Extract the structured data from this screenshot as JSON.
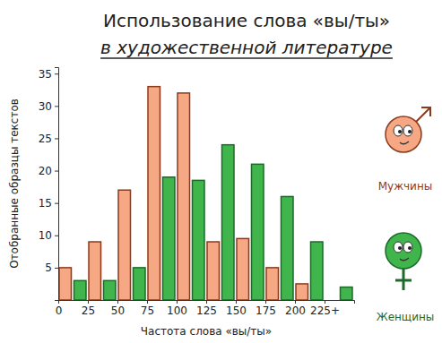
{
  "chart_data": {
    "type": "histogram",
    "title": "Использование слова «вы/ты»",
    "subtitle": "в художественной литературе",
    "x_label": "Частота слова «вы/ты»",
    "y_label": "Отобранные образцы текстов",
    "bins": [
      0,
      25,
      50,
      75,
      100,
      125,
      150,
      175,
      200,
      225,
      250
    ],
    "series": [
      {
        "name": "Мужчины",
        "color": "#f6a784",
        "values": [
          5,
          9,
          17,
          33,
          32,
          9,
          9.5,
          5,
          2.5,
          0
        ]
      },
      {
        "name": "Женщины",
        "color": "#3fb54b",
        "values": [
          3,
          3,
          5,
          19,
          18.5,
          24,
          21,
          16,
          9,
          2
        ]
      }
    ],
    "xlim": [
      0,
      250
    ],
    "xticks": [
      0,
      25,
      50,
      75,
      100,
      125,
      150,
      175,
      200,
      {
        "value": 225,
        "label": "225+"
      }
    ],
    "ylim": [
      0,
      36
    ],
    "yticks": [
      5,
      10,
      15,
      20,
      25,
      30,
      35
    ],
    "grid": false,
    "legend": "right"
  }
}
